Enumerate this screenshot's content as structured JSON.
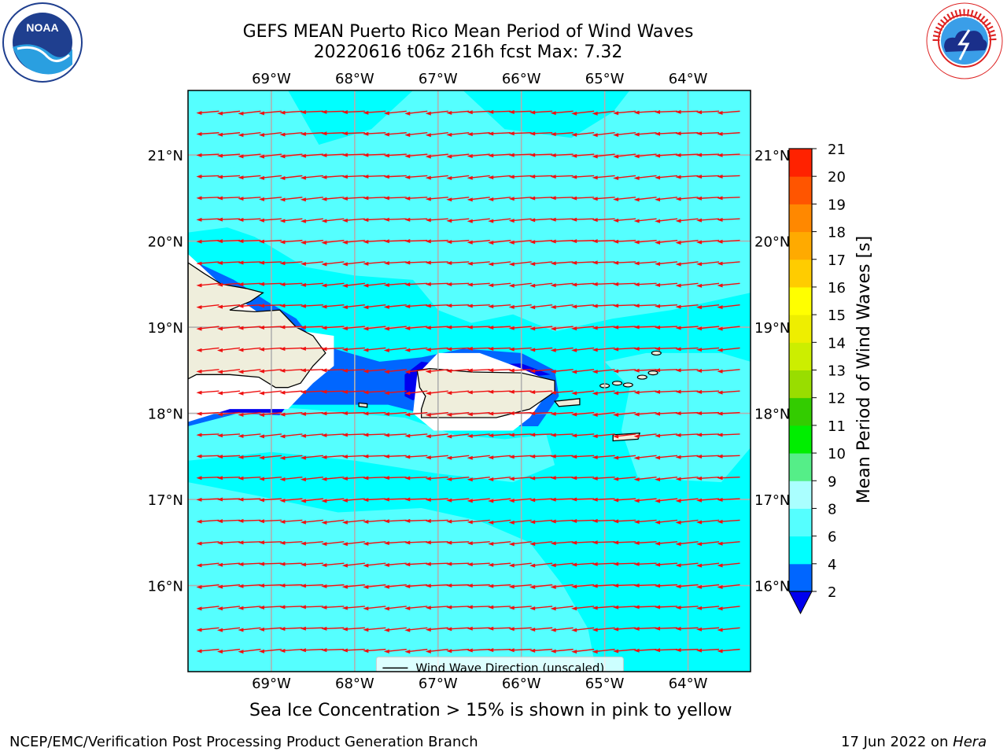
{
  "header": {
    "title_line1": "GEFS MEAN Puerto Rico Mean Period of Wind Waves",
    "title_line2": "20220616 t06z 216h fcst   Max: 7.32"
  },
  "logos": {
    "left": {
      "icon": "noaa-logo-icon",
      "text": "NOAA"
    },
    "right": {
      "icon": "national-weather-service-logo-icon",
      "text": "NATIONAL WEATHER SERVICE"
    }
  },
  "map": {
    "lon_labels": [
      "69°W",
      "68°W",
      "67°W",
      "66°W",
      "65°W",
      "64°W"
    ],
    "lat_labels": [
      "21°N",
      "20°N",
      "19°N",
      "18°N",
      "17°N",
      "16°N"
    ],
    "lon_range": [
      -70.0,
      -63.25
    ],
    "lat_range": [
      15.0,
      21.75
    ],
    "gridlines": true,
    "land_color": "#efeedc",
    "arrow_color": "#ee1111",
    "arrow_direction": "toward west",
    "legend": {
      "label": "Wind Wave Direction (unscaled)",
      "placement": "bottom-center"
    }
  },
  "colorbar": {
    "label": "Mean Period of Wind Waves [s]",
    "ticks": [
      "2",
      "4",
      "6",
      "8",
      "9",
      "10",
      "11",
      "12",
      "13",
      "14",
      "15",
      "16",
      "17",
      "18",
      "19",
      "20",
      "21"
    ],
    "colors": [
      "#0066ff",
      "#00ffff",
      "#55ffff",
      "#aaffff",
      "#55ee88",
      "#00ee00",
      "#33cc00",
      "#99dd00",
      "#ccee00",
      "#eeee00",
      "#ffff00",
      "#ffcc00",
      "#ffaa00",
      "#ff8800",
      "#ff5500",
      "#ff2200"
    ],
    "min_extend_color": "#0000ee"
  },
  "footer": {
    "note": "Sea Ice Concentration > 15% is shown in pink to yellow",
    "credit_left": "NCEP/EMC/Verification Post Processing Product Generation Branch",
    "date": "17 Jun 2022 on ",
    "host": "Hera"
  }
}
